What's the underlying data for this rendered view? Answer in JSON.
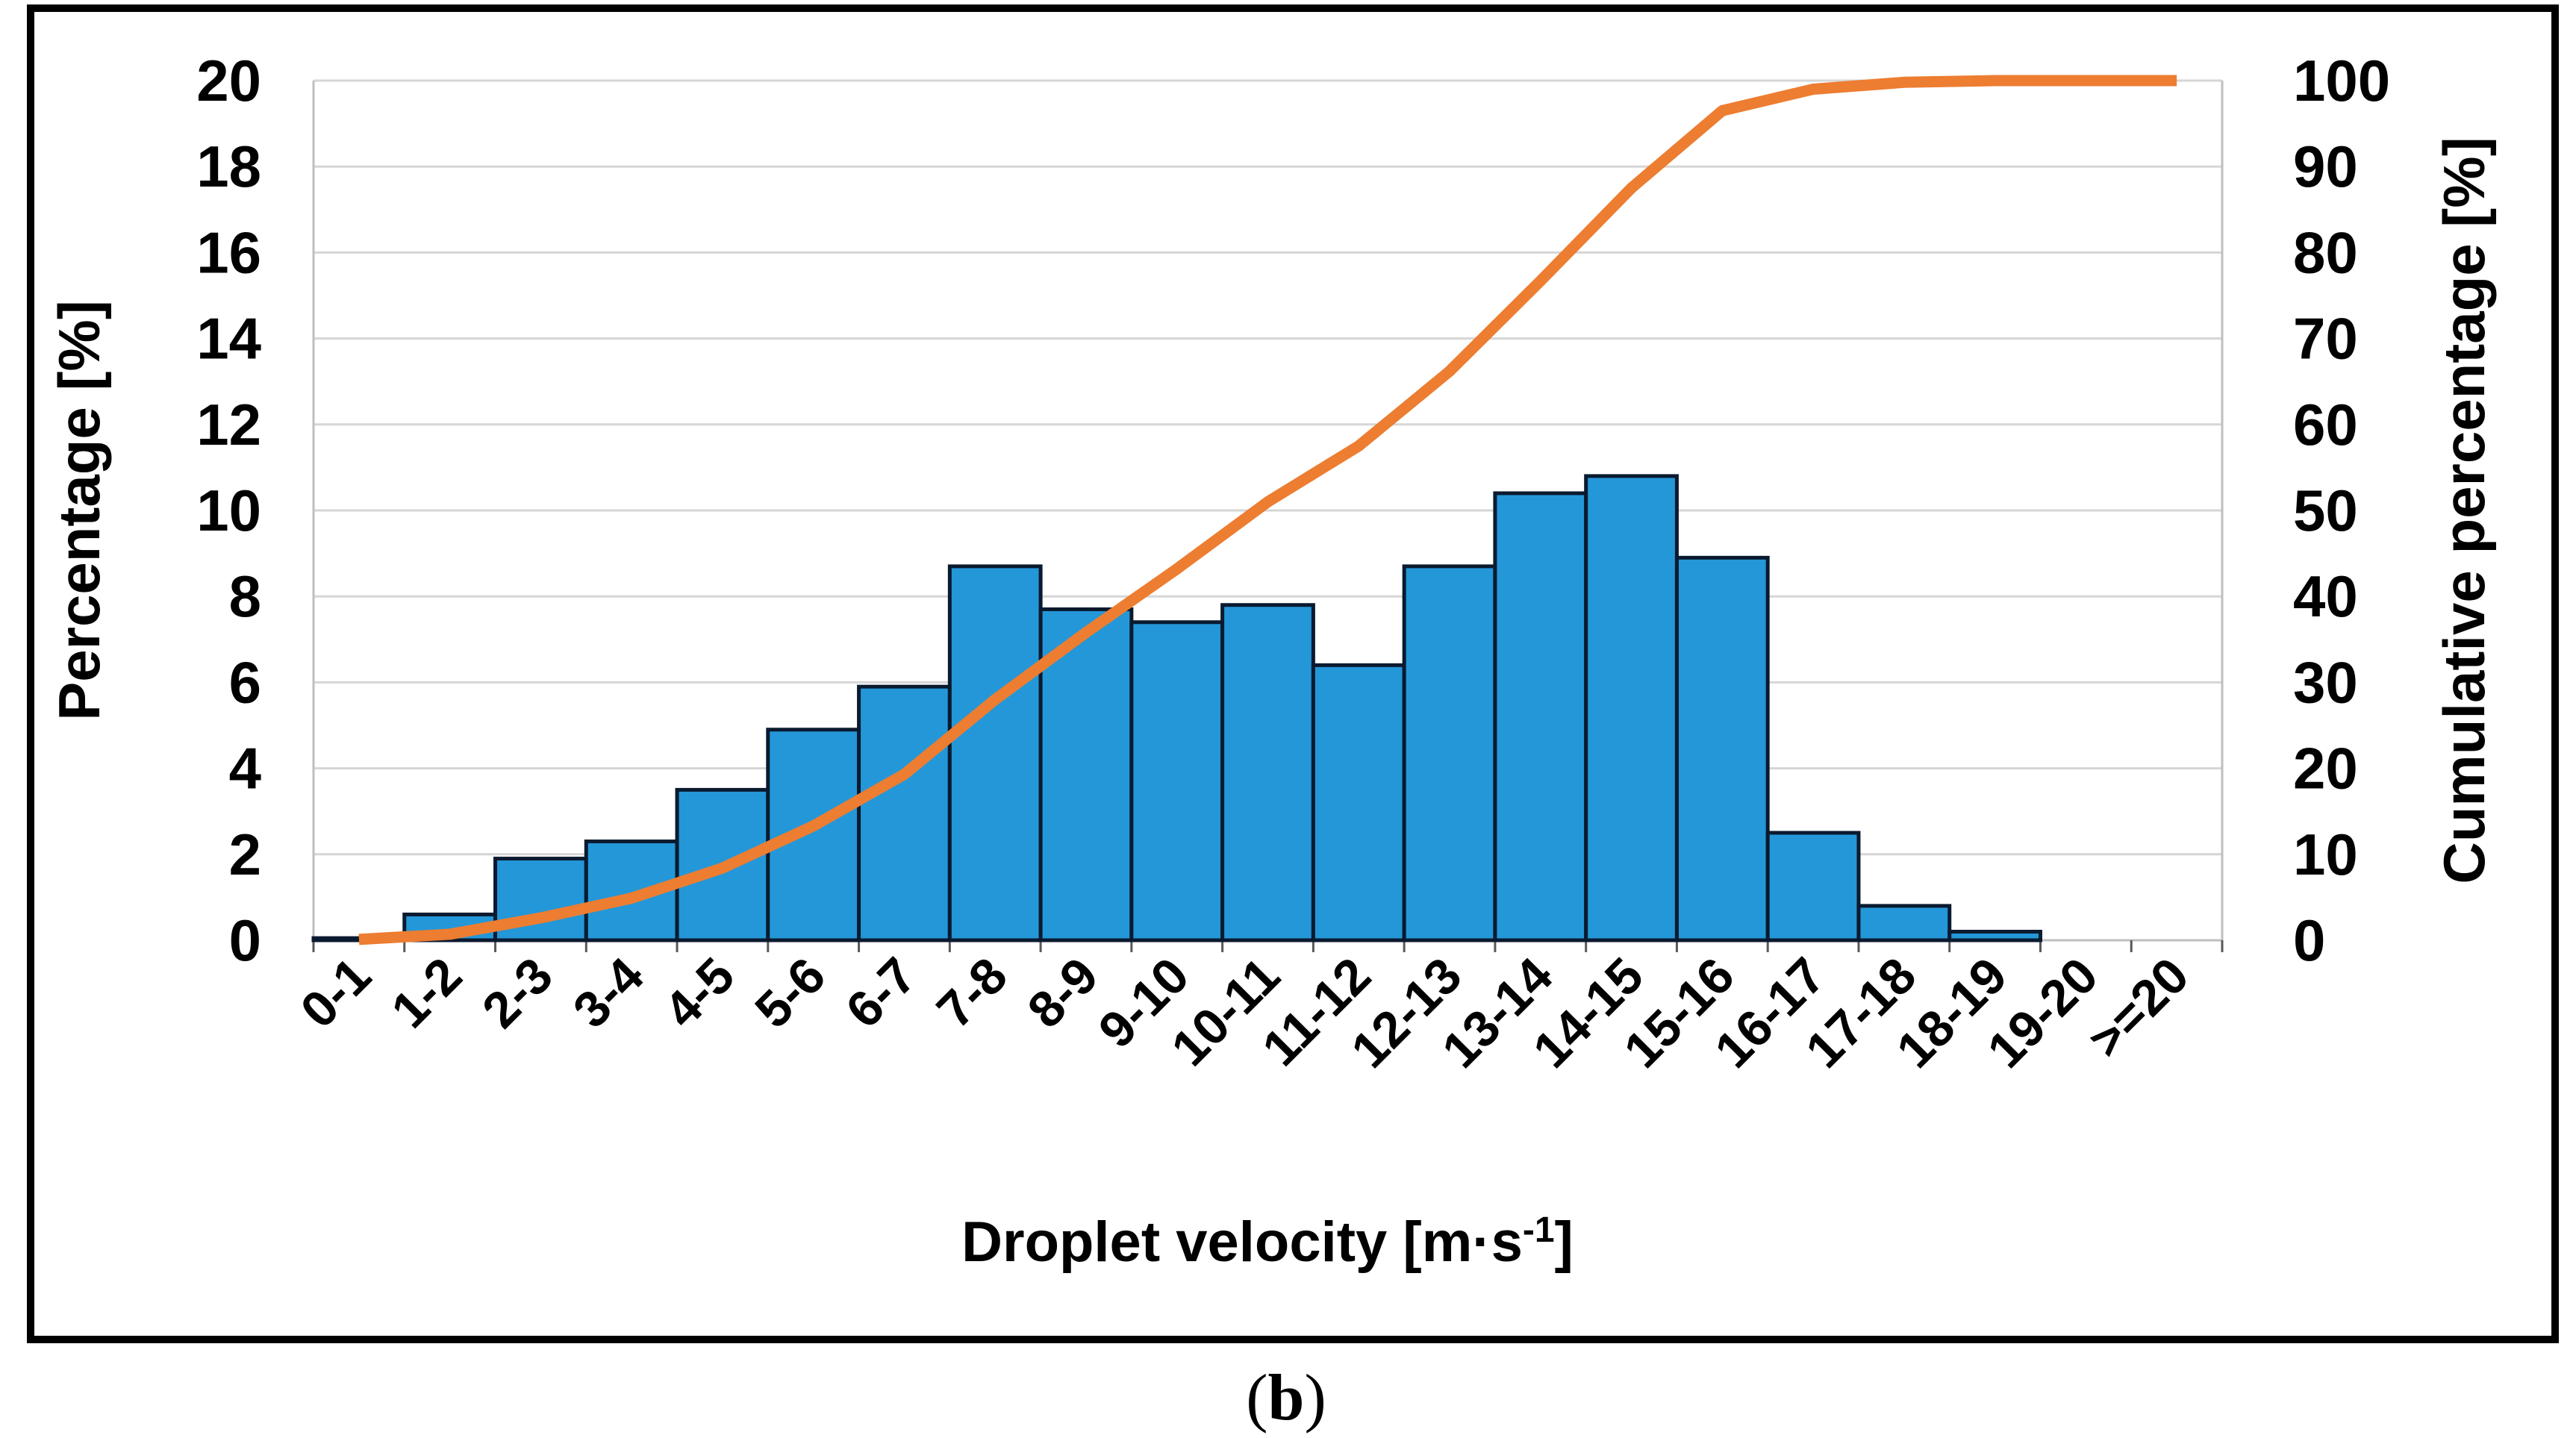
{
  "figure": {
    "caption_open": "(",
    "caption_letter": "b",
    "caption_close": ")"
  },
  "chart_data": {
    "type": "bar+line",
    "subtype": "histogram with cumulative percentage (Pareto)",
    "title": "",
    "legend": "none",
    "grid": "horizontal",
    "categories": [
      "0-1",
      "1-2",
      "2-3",
      "3-4",
      "4-5",
      "5-6",
      "6-7",
      "7-8",
      "8-9",
      "9-10",
      "10-11",
      "11-12",
      "12-13",
      "13-14",
      "14-15",
      "15-16",
      "16-17",
      "17-18",
      "18-19",
      "19-20",
      ">=20"
    ],
    "series": [
      {
        "name": "Percentage",
        "type": "bar",
        "axis": "left",
        "values": [
          0.05,
          0.6,
          1.9,
          2.3,
          3.5,
          4.9,
          5.9,
          8.7,
          7.7,
          7.4,
          7.8,
          6.4,
          8.7,
          10.4,
          10.8,
          8.9,
          2.5,
          0.8,
          0.2,
          0,
          0
        ]
      },
      {
        "name": "Cumulative percentage",
        "type": "line",
        "axis": "right",
        "values": [
          0.1,
          0.7,
          2.6,
          4.9,
          8.4,
          13.3,
          19.3,
          28.0,
          35.8,
          43.2,
          51.0,
          57.5,
          66.2,
          76.7,
          87.5,
          96.5,
          99.0,
          99.8,
          100,
          100,
          100
        ]
      }
    ],
    "left_axis": {
      "title": "Percentage [%]",
      "min": 0,
      "max": 20,
      "step": 2,
      "tick_labels": [
        "0",
        "2",
        "4",
        "6",
        "8",
        "10",
        "12",
        "14",
        "16",
        "18",
        "20"
      ]
    },
    "right_axis": {
      "title": "Cumulative percentage [%]",
      "min": 0,
      "max": 100,
      "step": 10,
      "tick_labels": [
        "0",
        "10",
        "20",
        "30",
        "40",
        "50",
        "60",
        "70",
        "80",
        "90",
        "100"
      ]
    },
    "x_axis": {
      "title_main": "Droplet velocity [m·s",
      "title_sup": "-1",
      "title_close": "]"
    },
    "colors": {
      "bar_fill": "#2497D8",
      "bar_stroke": "#0A1A2F",
      "line": "#ED7D31",
      "gridline": "#D6D6D6",
      "axis_line": "#BFBFBF",
      "tick": "#595959",
      "text": "#000000",
      "border": "#000000"
    }
  }
}
